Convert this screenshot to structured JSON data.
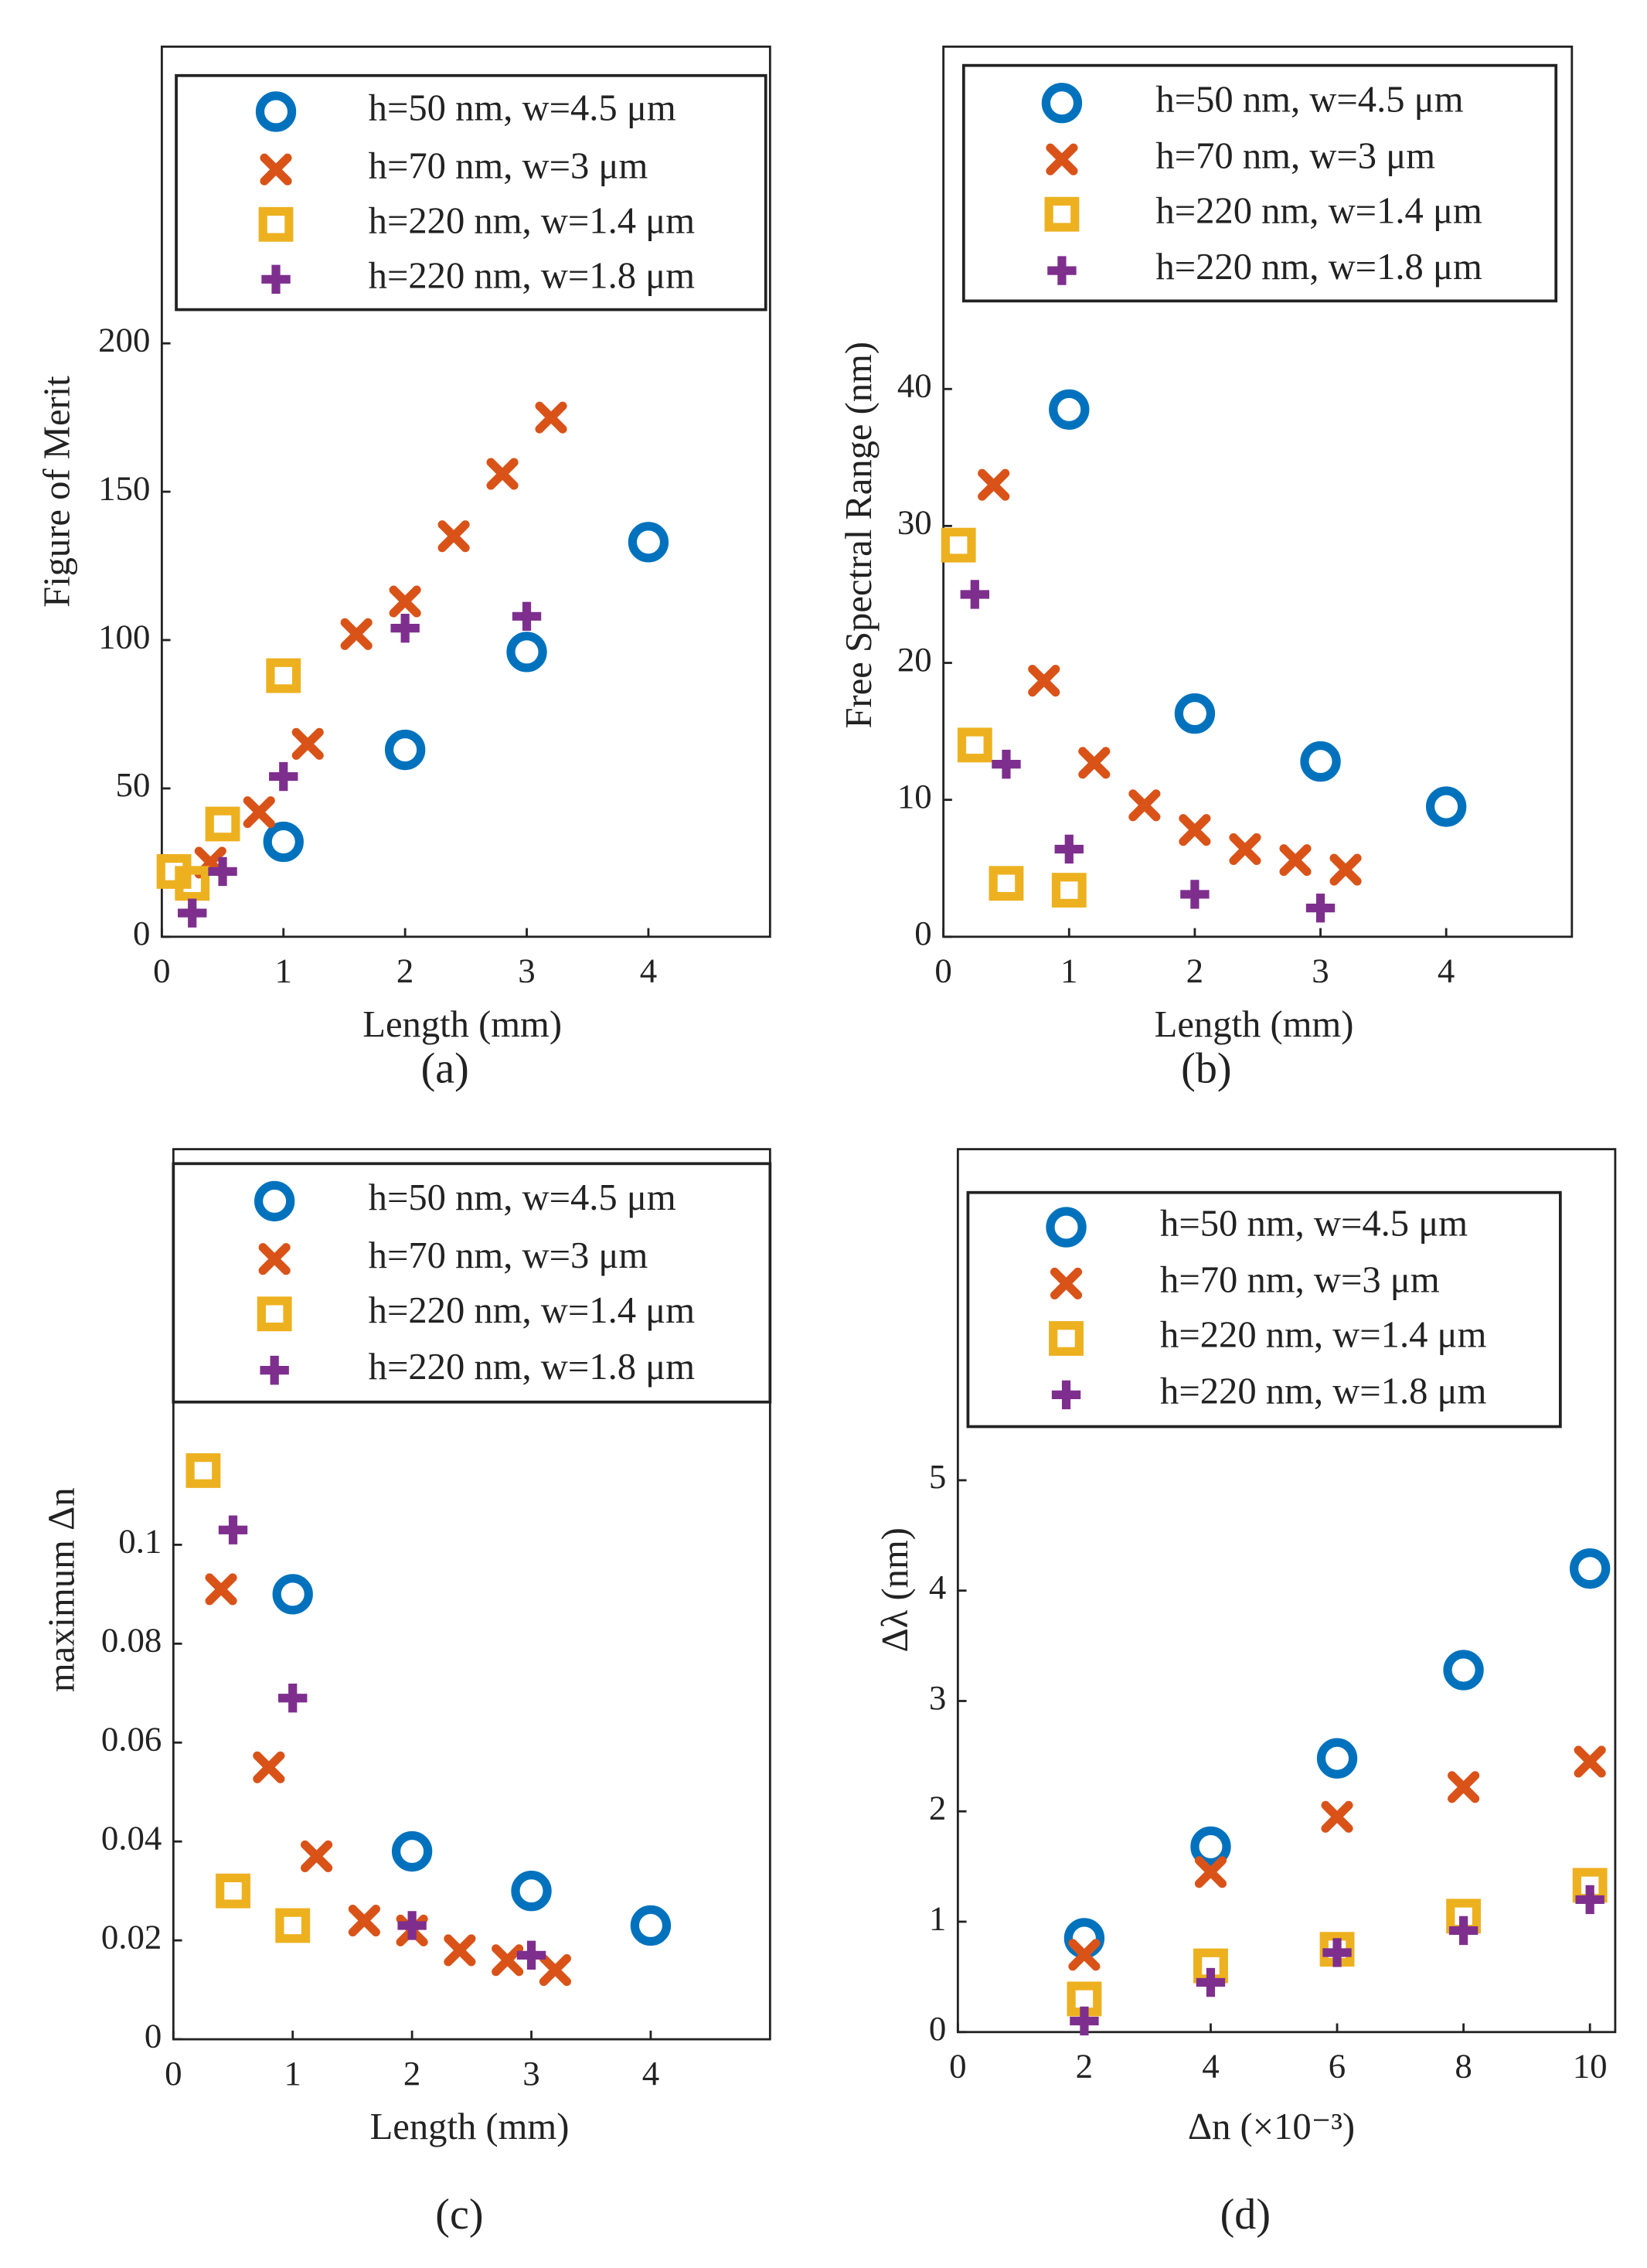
{
  "chart_data": [
    {
      "type": "scatter",
      "caption": "(a)",
      "xlabel": "Length (mm)",
      "ylabel": "Figure of Merit",
      "xlim": [
        0,
        5
      ],
      "ylim": [
        0,
        300
      ],
      "xticks": [
        0,
        1,
        2,
        3,
        4
      ],
      "yticks": [
        0,
        50,
        100,
        150,
        200
      ],
      "legend": "top",
      "series": [
        {
          "name": "h=50 nm, w=4.5  μm",
          "color": "#0072bd",
          "marker": "o",
          "x": [
            1,
            2,
            3,
            4
          ],
          "values": [
            32,
            63,
            96,
            133
          ]
        },
        {
          "name": "h=70 nm, w=3 μm",
          "color": "#d95319",
          "marker": "x",
          "x": [
            0.4,
            0.8,
            1.2,
            1.6,
            2,
            2.4,
            2.8,
            3.2
          ],
          "values": [
            25,
            42,
            65,
            102,
            113,
            135,
            156,
            175
          ]
        },
        {
          "name": "h=220 nm, w=1.4 μm",
          "color": "#edb120",
          "marker": "s",
          "x": [
            0.1,
            0.25,
            0.5,
            1
          ],
          "values": [
            22,
            18,
            38,
            88
          ]
        },
        {
          "name": "h=220 nm, w=1.8 μm",
          "color": "#7e2f8e",
          "marker": "+",
          "x": [
            0.25,
            0.5,
            1,
            2,
            3
          ],
          "values": [
            8,
            22,
            54,
            104,
            108
          ]
        }
      ]
    },
    {
      "type": "scatter",
      "caption": "(b)",
      "xlabel": "Length (mm)",
      "ylabel": "Free Spectral Range (nm)",
      "xlim": [
        0,
        5
      ],
      "ylim": [
        0,
        65
      ],
      "xticks": [
        0,
        1,
        2,
        3,
        4
      ],
      "yticks": [
        0,
        10,
        20,
        30,
        40
      ],
      "legend": "top",
      "series": [
        {
          "name": "h=50 nm, w=4.5  μm",
          "color": "#0072bd",
          "marker": "o",
          "x": [
            1,
            2,
            3,
            4
          ],
          "values": [
            38.5,
            16.3,
            12.8,
            9.5
          ]
        },
        {
          "name": "h=70 nm, w=3 μm",
          "color": "#d95319",
          "marker": "x",
          "x": [
            0.4,
            0.8,
            1.2,
            1.6,
            2,
            2.4,
            2.8,
            3.2
          ],
          "values": [
            33,
            18.7,
            12.7,
            9.6,
            7.8,
            6.4,
            5.6,
            4.9
          ]
        },
        {
          "name": "h=220 nm, w=1.4 μm",
          "color": "#edb120",
          "marker": "s",
          "x": [
            0.12,
            0.25,
            0.5,
            1
          ],
          "values": [
            28.6,
            14,
            3.9,
            3.4
          ]
        },
        {
          "name": "h=220 nm, w=1.8 μm",
          "color": "#7e2f8e",
          "marker": "+",
          "x": [
            0.25,
            0.5,
            1,
            2,
            3
          ],
          "values": [
            25,
            12.6,
            6.4,
            3.1,
            2.1
          ]
        }
      ]
    },
    {
      "type": "scatter",
      "caption": "(c)",
      "xlabel": "Length (mm)",
      "ylabel": "maximum Δn",
      "xlim": [
        0,
        5
      ],
      "ylim": [
        0,
        0.18
      ],
      "xticks": [
        0,
        1,
        2,
        3,
        4
      ],
      "yticks": [
        0,
        0.02,
        0.04,
        0.06,
        0.08,
        0.1
      ],
      "legend": "top",
      "series": [
        {
          "name": "h=50 nm, w=4.5  μm",
          "color": "#0072bd",
          "marker": "o",
          "x": [
            1,
            2,
            3,
            4
          ],
          "values": [
            0.09,
            0.038,
            0.03,
            0.023
          ]
        },
        {
          "name": "h=70 nm, w=3 μm",
          "color": "#d95319",
          "marker": "x",
          "x": [
            0.4,
            0.8,
            1.2,
            1.6,
            2,
            2.4,
            2.8,
            3.2
          ],
          "values": [
            0.091,
            0.055,
            0.037,
            0.024,
            0.022,
            0.018,
            0.016,
            0.014
          ]
        },
        {
          "name": "h=220 nm, w=1.4 μm",
          "color": "#edb120",
          "marker": "s",
          "x": [
            0.25,
            0.5,
            1
          ],
          "values": [
            0.115,
            0.03,
            0.023
          ]
        },
        {
          "name": "h=220 nm, w=1.8 μm",
          "color": "#7e2f8e",
          "marker": "+",
          "x": [
            0.5,
            1,
            2,
            3
          ],
          "values": [
            0.103,
            0.069,
            0.023,
            0.017
          ]
        }
      ]
    },
    {
      "type": "scatter",
      "caption": "(d)",
      "xlabel": "Δn (×10⁻³)",
      "ylabel": "Δλ (nm)",
      "xlim": [
        0,
        10.4
      ],
      "ylim": [
        0,
        8
      ],
      "xticks": [
        0,
        2,
        4,
        6,
        8,
        10
      ],
      "yticks": [
        0,
        1,
        2,
        3,
        4,
        5
      ],
      "legend": "top",
      "series": [
        {
          "name": "h=50 nm, w=4.5  μm",
          "color": "#0072bd",
          "marker": "o",
          "x": [
            2,
            4,
            6,
            8,
            10
          ],
          "values": [
            0.85,
            1.68,
            2.48,
            3.28,
            4.2
          ]
        },
        {
          "name": "h=70 nm, w=3 μm",
          "color": "#d95319",
          "marker": "x",
          "x": [
            2,
            4,
            6,
            8,
            10
          ],
          "values": [
            0.7,
            1.45,
            1.95,
            2.22,
            2.45
          ]
        },
        {
          "name": "h=220 nm, w=1.4 μm",
          "color": "#edb120",
          "marker": "s",
          "x": [
            2,
            4,
            6,
            8,
            10
          ],
          "values": [
            0.3,
            0.6,
            0.75,
            1.05,
            1.33
          ]
        },
        {
          "name": "h=220 nm, w=1.8 μm",
          "color": "#7e2f8e",
          "marker": "+",
          "x": [
            2,
            4,
            6,
            8,
            10
          ],
          "values": [
            0.1,
            0.45,
            0.72,
            0.92,
            1.2
          ]
        }
      ]
    }
  ]
}
